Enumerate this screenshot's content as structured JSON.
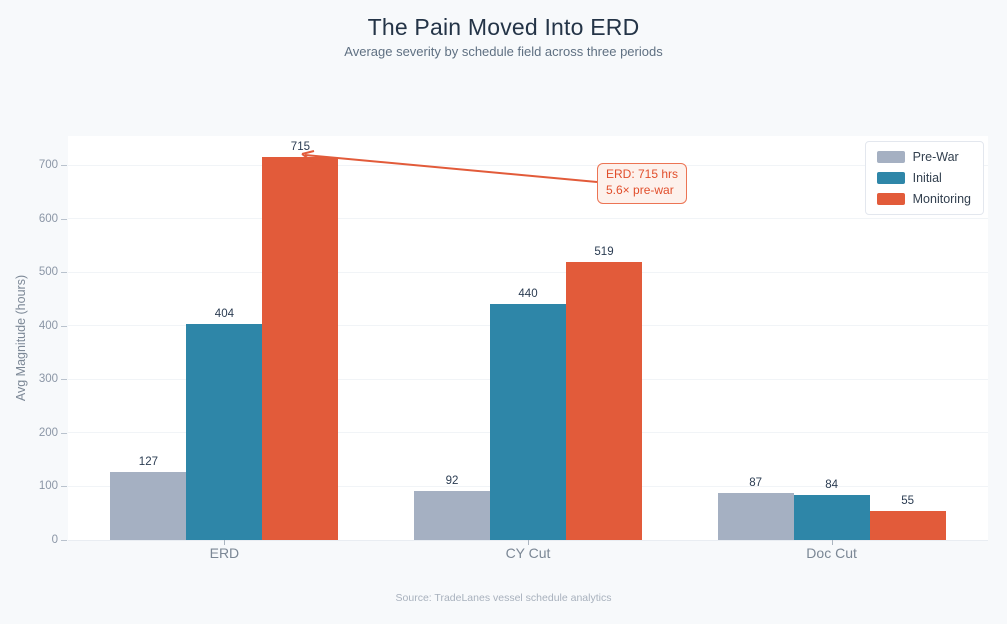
{
  "header": {
    "title": "The Pain Moved Into ERD",
    "subtitle": "Average severity by schedule field across three periods"
  },
  "footer": {
    "source": "Source: TradeLanes vessel schedule analytics"
  },
  "chart_data": {
    "type": "bar",
    "title": "The Pain Moved Into ERD",
    "subtitle": "Average severity by schedule field across three periods",
    "categories": [
      "ERD",
      "CY Cut",
      "Doc Cut"
    ],
    "series": [
      {
        "name": "Pre-War",
        "color": "#a5b0c2",
        "values": [
          127,
          92,
          87
        ]
      },
      {
        "name": "Initial",
        "color": "#2e86a8",
        "values": [
          404,
          440,
          84
        ]
      },
      {
        "name": "Monitoring",
        "color": "#e25b3a",
        "values": [
          715,
          519,
          55
        ]
      }
    ],
    "xlabel": "",
    "ylabel": "Avg Magnitude (hours)",
    "ylim": [
      0,
      754
    ],
    "yticks": [
      0,
      100,
      200,
      300,
      400,
      500,
      600,
      700
    ],
    "grid": true,
    "legend_position": "top-right",
    "bar_value_labels": true,
    "annotation": {
      "line1": "ERD: 715 hrs",
      "line2": "5.6× pre-war",
      "target": "ERD Monitoring bar",
      "color": "#e14e2b"
    },
    "source": "Source: TradeLanes vessel schedule analytics"
  },
  "colors": {
    "page_bg": "#f7f9fb",
    "plot_bg": "#ffffff",
    "grid": "#f1f4f7",
    "title": "#243447",
    "subtitle": "#5f7082",
    "tick_label": "#8b96a6",
    "axis_label": "#7c8896",
    "category_label": "#7b8795",
    "value_label": "#2b3c52",
    "legend_text": "#33404f",
    "footer_text": "#a8b1bd",
    "connector": "#e25b3a"
  }
}
